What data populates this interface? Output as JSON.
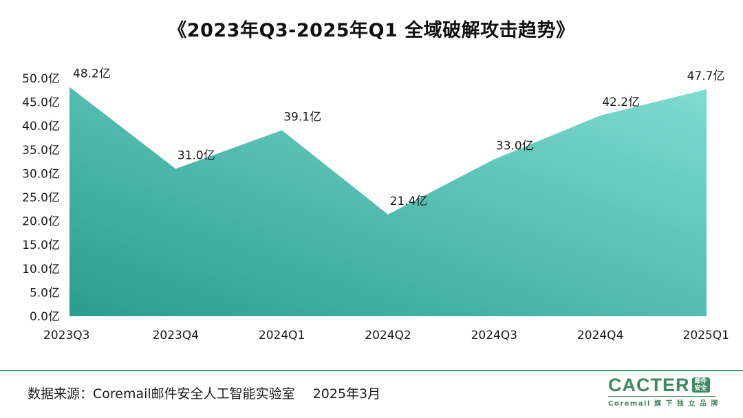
{
  "chart_data": {
    "type": "area",
    "title": "《2023年Q3-2025年Q1 全域破解攻击趋势》",
    "categories": [
      "2023Q3",
      "2023Q4",
      "2024Q1",
      "2024Q2",
      "2024Q3",
      "2024Q4",
      "2025Q1"
    ],
    "values": [
      48.2,
      31.0,
      39.1,
      21.4,
      33.0,
      42.2,
      47.7
    ],
    "data_labels": [
      "48.2亿",
      "31.0亿",
      "39.1亿",
      "21.4亿",
      "33.0亿",
      "42.2亿",
      "47.7亿"
    ],
    "ylim": [
      0,
      50
    ],
    "yticks": [
      0,
      5,
      10,
      15,
      20,
      25,
      30,
      35,
      40,
      45,
      50
    ],
    "ytick_labels": [
      "0.0亿",
      "5.0亿",
      "10.0亿",
      "15.0亿",
      "20.0亿",
      "25.0亿",
      "30.0亿",
      "35.0亿",
      "40.0亿",
      "45.0亿",
      "50.0亿"
    ],
    "xlabel": "",
    "ylabel": "",
    "grid": false,
    "colors": {
      "fill_start": "#2a9d8f",
      "fill_end": "#7fdcd1"
    }
  },
  "footer": {
    "source": "数据来源：Coremail邮件安全人工智能实验室",
    "date": "2025年3月",
    "line_color": "#4d8f69"
  },
  "brand": {
    "name": "CACTER",
    "badge_line1": "邮件",
    "badge_line2": "安全",
    "tagline": "Coremail 旗 下 独 立 品 牌",
    "color": "#3f8a62"
  }
}
